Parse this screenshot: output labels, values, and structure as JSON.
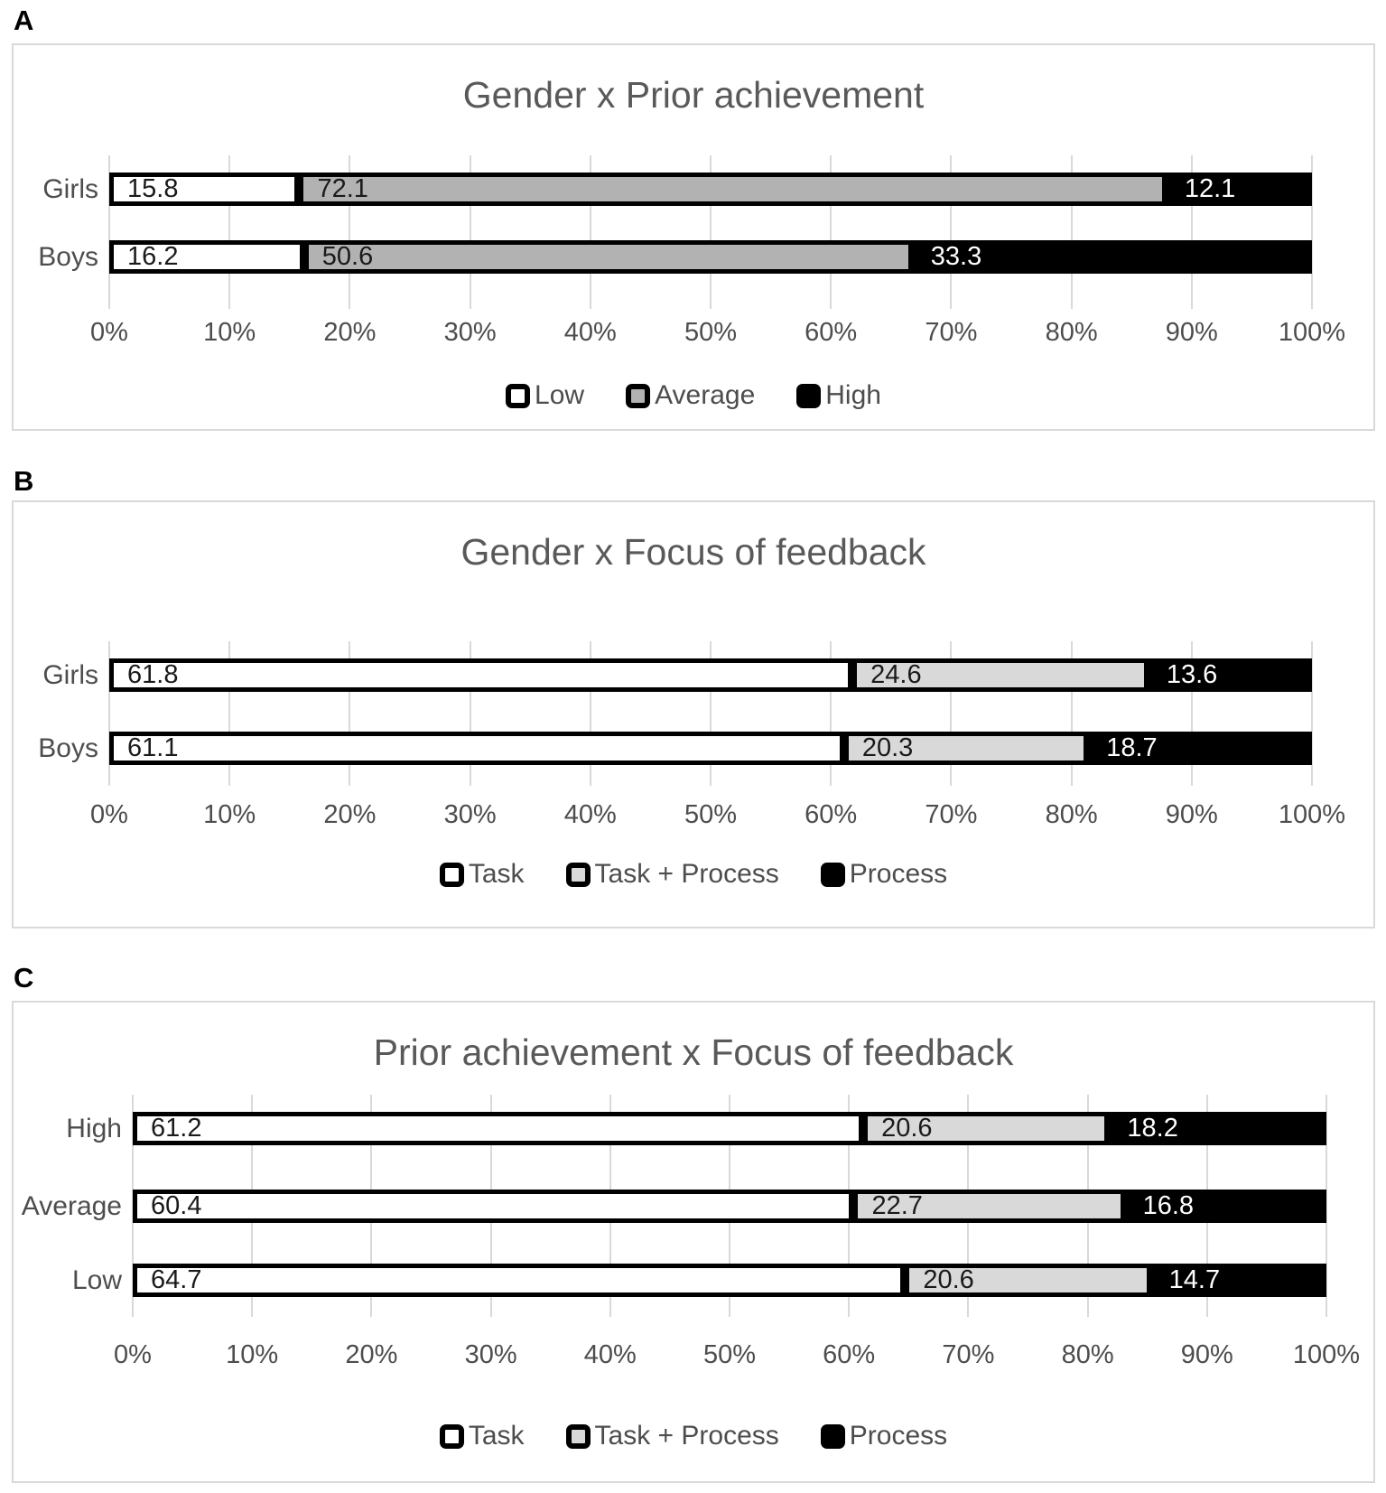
{
  "figure": {
    "panel_labels": [
      "A",
      "B",
      "C"
    ]
  },
  "colors": {
    "panel_border": "#d9d9d9",
    "gridline": "#d9d9d9",
    "title_text": "#595959",
    "axis_text": "#4d4d4d",
    "segment_border": "#000000",
    "white_fill": "#ffffff",
    "medium_gray_fill": "#b2b2b2",
    "light_gray_fill": "#d9d9d9",
    "black_fill": "#000000",
    "label_on_light": "#1a1a1a",
    "label_on_dark": "#ffffff"
  },
  "chart_data": [
    {
      "type": "bar",
      "stacked": true,
      "orientation": "horizontal",
      "panel_label": "A",
      "title": "Gender x Prior achievement",
      "categories": [
        "Girls",
        "Boys"
      ],
      "series": [
        {
          "name": "Low",
          "color": "#ffffff",
          "label_color": "#1a1a1a",
          "values": [
            15.8,
            16.2
          ]
        },
        {
          "name": "Average",
          "color": "#b2b2b2",
          "label_color": "#1a1a1a",
          "values": [
            72.1,
            50.6
          ]
        },
        {
          "name": "High",
          "color": "#000000",
          "label_color": "#ffffff",
          "values": [
            12.1,
            33.3
          ]
        }
      ],
      "xlim": [
        0,
        100
      ],
      "x_ticks": [
        "0%",
        "10%",
        "20%",
        "30%",
        "40%",
        "50%",
        "60%",
        "70%",
        "80%",
        "90%",
        "100%"
      ],
      "gridlines": true,
      "legend_position": "bottom"
    },
    {
      "type": "bar",
      "stacked": true,
      "orientation": "horizontal",
      "panel_label": "B",
      "title": "Gender x Focus of feedback",
      "categories": [
        "Girls",
        "Boys"
      ],
      "series": [
        {
          "name": "Task",
          "color": "#ffffff",
          "label_color": "#1a1a1a",
          "values": [
            61.8,
            61.1
          ]
        },
        {
          "name": "Task + Process",
          "color": "#d9d9d9",
          "label_color": "#1a1a1a",
          "values": [
            24.6,
            20.3
          ]
        },
        {
          "name": "Process",
          "color": "#000000",
          "label_color": "#ffffff",
          "values": [
            13.6,
            18.7
          ]
        }
      ],
      "xlim": [
        0,
        100
      ],
      "x_ticks": [
        "0%",
        "10%",
        "20%",
        "30%",
        "40%",
        "50%",
        "60%",
        "70%",
        "80%",
        "90%",
        "100%"
      ],
      "gridlines": true,
      "legend_position": "bottom"
    },
    {
      "type": "bar",
      "stacked": true,
      "orientation": "horizontal",
      "panel_label": "C",
      "title": "Prior achievement x Focus of feedback",
      "categories": [
        "High",
        "Average",
        "Low"
      ],
      "series": [
        {
          "name": "Task",
          "color": "#ffffff",
          "label_color": "#1a1a1a",
          "values": [
            61.2,
            60.4,
            64.7
          ]
        },
        {
          "name": "Task + Process",
          "color": "#d9d9d9",
          "label_color": "#1a1a1a",
          "values": [
            20.6,
            22.7,
            20.6
          ]
        },
        {
          "name": "Process",
          "color": "#000000",
          "label_color": "#ffffff",
          "values": [
            18.2,
            16.8,
            14.7
          ]
        }
      ],
      "xlim": [
        0,
        100
      ],
      "x_ticks": [
        "0%",
        "10%",
        "20%",
        "30%",
        "40%",
        "50%",
        "60%",
        "70%",
        "80%",
        "90%",
        "100%"
      ],
      "gridlines": true,
      "legend_position": "bottom"
    }
  ]
}
